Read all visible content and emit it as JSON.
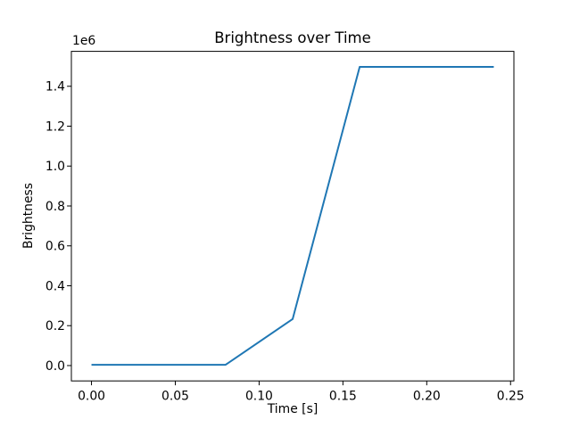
{
  "figure": {
    "background": "#ffffff",
    "text_color": "#000000",
    "spine_color": "#000000"
  },
  "chart_data": {
    "type": "line",
    "title": "Brightness over Time",
    "xlabel": "Time [s]",
    "ylabel": "Brightness",
    "y_offset_label": "1e6",
    "grid": false,
    "legend": null,
    "xlim": [
      -0.012,
      0.252
    ],
    "ylim": [
      -77000,
      1575000
    ],
    "xticks": {
      "values": [
        0.0,
        0.05,
        0.1,
        0.15,
        0.2,
        0.25
      ],
      "labels": [
        "0.00",
        "0.05",
        "0.10",
        "0.15",
        "0.20",
        "0.25"
      ]
    },
    "yticks": {
      "values": [
        0,
        200000,
        400000,
        600000,
        800000,
        1000000,
        1200000,
        1400000
      ],
      "labels": [
        "0.0",
        "0.2",
        "0.4",
        "0.6",
        "0.8",
        "1.0",
        "1.2",
        "1.4"
      ]
    },
    "series": [
      {
        "name": "brightness",
        "color": "#1f77b4",
        "x": [
          0.0,
          0.04,
          0.08,
          0.12,
          0.16,
          0.2,
          0.24
        ],
        "y": [
          4000,
          4000,
          4000,
          233000,
          1497000,
          1497000,
          1497000
        ]
      }
    ]
  }
}
